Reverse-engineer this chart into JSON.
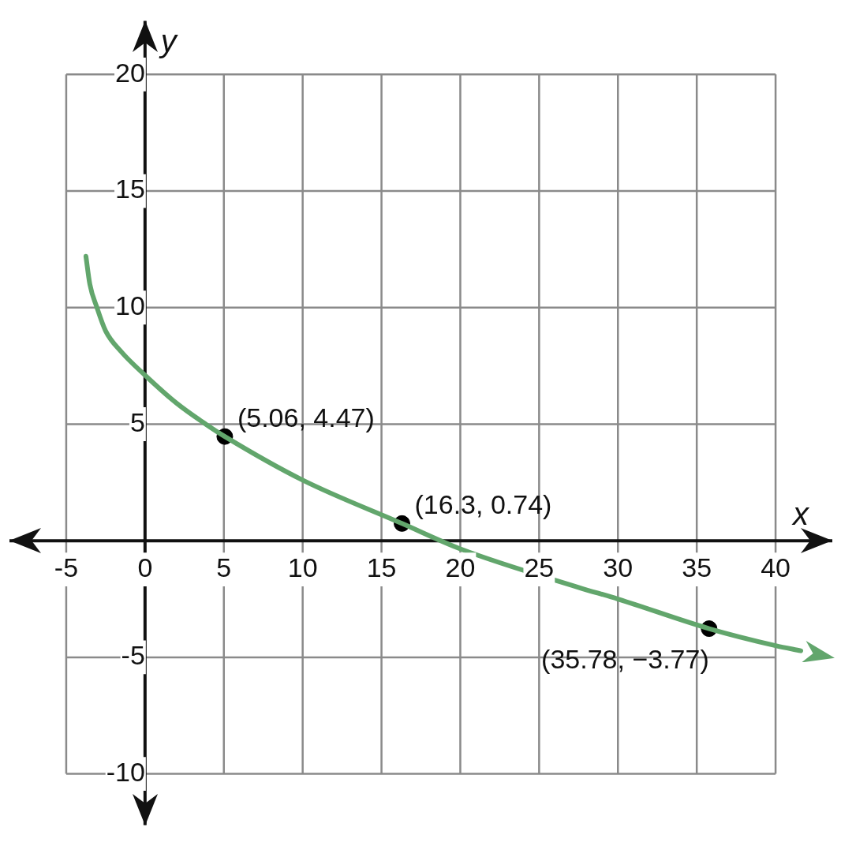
{
  "chart_data": {
    "type": "line",
    "xlabel": "x",
    "ylabel": "y",
    "xlim": [
      -8.6,
      43.6
    ],
    "ylim": [
      -12.2,
      22.3
    ],
    "xticks": [
      -5,
      0,
      5,
      10,
      15,
      20,
      25,
      30,
      35,
      40
    ],
    "yticks": [
      -10,
      -5,
      5,
      10,
      15,
      20
    ],
    "grid": true,
    "line_style": "solid",
    "series": [
      {
        "marker": "none",
        "color": "#62a66c",
        "x": [
          -3.75,
          -3.5,
          -3.05,
          -2.5,
          -1.5,
          0,
          2,
          3.85,
          5.06,
          10,
          16.3,
          20,
          27.5,
          30,
          35.78,
          40,
          41.6
        ],
        "values": [
          12.2,
          11,
          10,
          9,
          8.1,
          7.1,
          5.9,
          5,
          4.47,
          2.6,
          0.74,
          -0.35,
          -2,
          -2.5,
          -3.77,
          -4.5,
          -4.72
        ]
      },
      {
        "type": "scatter",
        "marker": "circle",
        "color": "#000000",
        "x": [
          5.06,
          16.3,
          35.78
        ],
        "values": [
          4.47,
          0.74,
          -3.77
        ]
      }
    ],
    "annotations": [
      {
        "text": "(5.06, 4.47)",
        "x": 5.06,
        "y": 4.47
      },
      {
        "text": "(16.3, 0.74)",
        "x": 16.3,
        "y": 0.74
      },
      {
        "text": "(35.78, −3.77)",
        "x": 35.78,
        "y": -3.77
      }
    ]
  }
}
